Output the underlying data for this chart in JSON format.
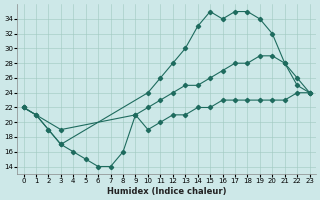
{
  "xlabel": "Humidex (Indice chaleur)",
  "background_color": "#cde8e8",
  "grid_color": "#a0c8c0",
  "line_color": "#1e6b5e",
  "xlim": [
    -0.5,
    23.5
  ],
  "ylim": [
    13,
    36
  ],
  "yticks": [
    14,
    16,
    18,
    20,
    22,
    24,
    26,
    28,
    30,
    32,
    34
  ],
  "xticks": [
    0,
    1,
    2,
    3,
    4,
    5,
    6,
    7,
    8,
    9,
    10,
    11,
    12,
    13,
    14,
    15,
    16,
    17,
    18,
    19,
    20,
    21,
    22,
    23
  ],
  "series": {
    "max": {
      "x": [
        0,
        1,
        2,
        3,
        10,
        11,
        12,
        13,
        14,
        15,
        16,
        17,
        18,
        19,
        20,
        21,
        22,
        23
      ],
      "y": [
        22,
        21,
        19,
        17,
        24,
        26,
        28,
        30,
        33,
        35,
        34,
        35,
        35,
        34,
        32,
        28,
        25,
        24
      ]
    },
    "mean": {
      "x": [
        0,
        3,
        9,
        10,
        11,
        12,
        13,
        14,
        15,
        16,
        17,
        18,
        19,
        20,
        21,
        22,
        23
      ],
      "y": [
        22,
        19,
        21,
        22,
        23,
        24,
        25,
        25,
        26,
        27,
        28,
        28,
        29,
        29,
        28,
        26,
        24
      ]
    },
    "min": {
      "x": [
        0,
        1,
        2,
        3,
        4,
        5,
        6,
        7,
        8,
        9,
        10,
        11,
        12,
        13,
        14,
        15,
        16,
        17,
        18,
        19,
        20,
        21,
        22,
        23
      ],
      "y": [
        22,
        21,
        19,
        17,
        16,
        15,
        14,
        14,
        16,
        21,
        19,
        20,
        21,
        21,
        22,
        22,
        23,
        23,
        23,
        23,
        23,
        23,
        24,
        24
      ]
    }
  }
}
